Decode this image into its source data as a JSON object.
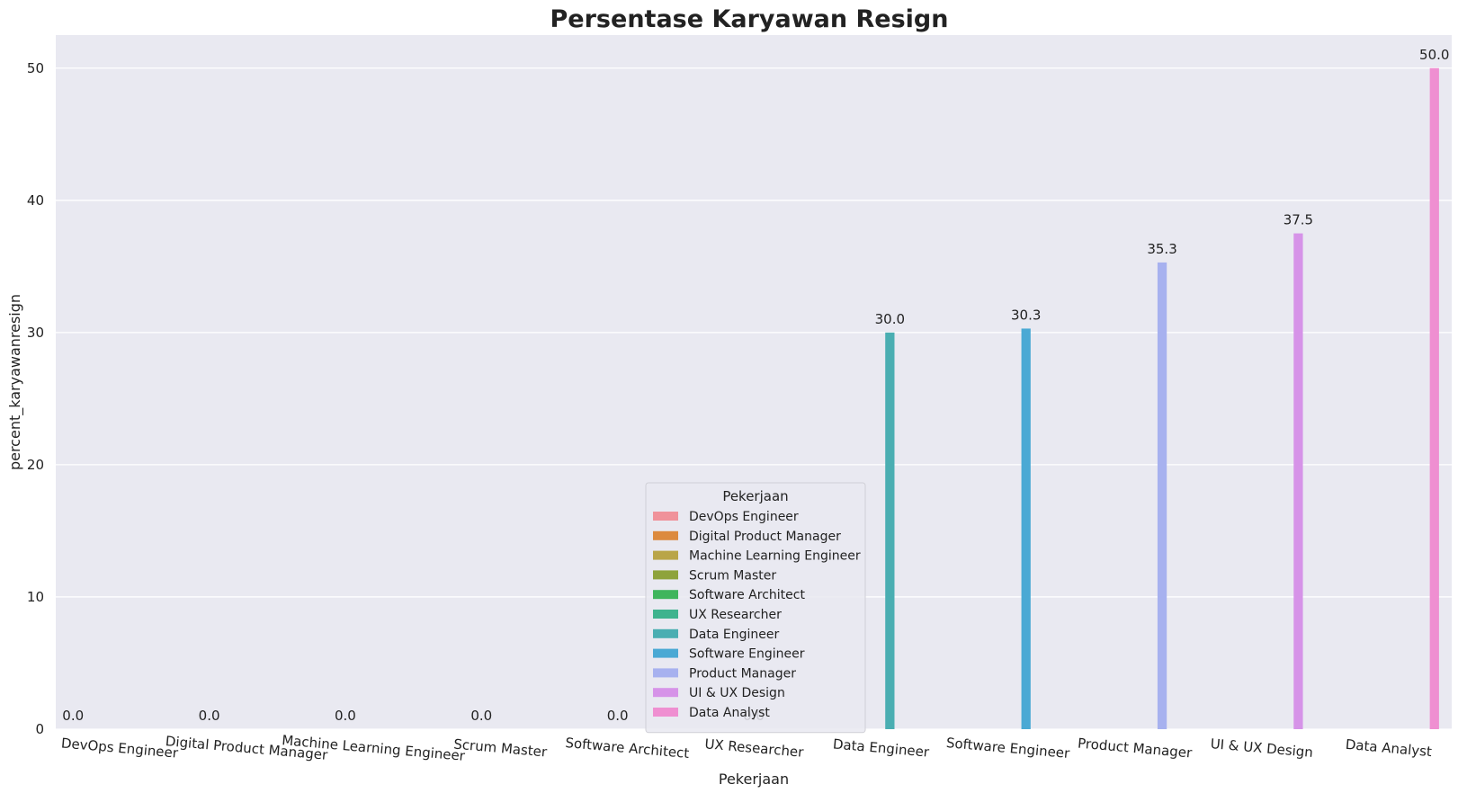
{
  "chart_data": {
    "type": "bar",
    "title": "Persentase Karyawan Resign",
    "xlabel": "Pekerjaan",
    "ylabel": "percent_karyawanresign",
    "ylim": [
      0,
      52.5
    ],
    "yticks": [
      0,
      10,
      20,
      30,
      40,
      50
    ],
    "grid": true,
    "categories": [
      "DevOps Engineer",
      "Digital Product Manager",
      "Machine Learning Engineer",
      "Scrum Master",
      "Software Architect",
      "UX Researcher",
      "Data Engineer",
      "Software Engineer",
      "Product Manager",
      "UI & UX Design",
      "Data Analyst"
    ],
    "values": [
      0.0,
      0.0,
      0.0,
      0.0,
      0.0,
      0.0,
      30.0,
      30.3,
      35.3,
      37.5,
      50.0
    ],
    "data_labels": [
      "0.0",
      "0.0",
      "0.0",
      "0.0",
      "0.0",
      "0.0",
      "30.0",
      "30.3",
      "35.3",
      "37.5",
      "50.0"
    ],
    "colors": [
      "#f0929a",
      "#dc8a3e",
      "#b9a548",
      "#8ea33b",
      "#3fb55c",
      "#3fb38e",
      "#4aaeb2",
      "#4aa9d4",
      "#a7b1ef",
      "#d693e8",
      "#ef8fd1"
    ],
    "legend": {
      "title": "Pekerjaan",
      "placement": "lower-center",
      "entries": [
        "DevOps Engineer",
        "Digital Product Manager",
        "Machine Learning Engineer",
        "Scrum Master",
        "Software Architect",
        "UX Researcher",
        "Data Engineer",
        "Software Engineer",
        "Product Manager",
        "UI & UX Design",
        "Data Analyst"
      ]
    },
    "background": "#e9e9f1"
  }
}
